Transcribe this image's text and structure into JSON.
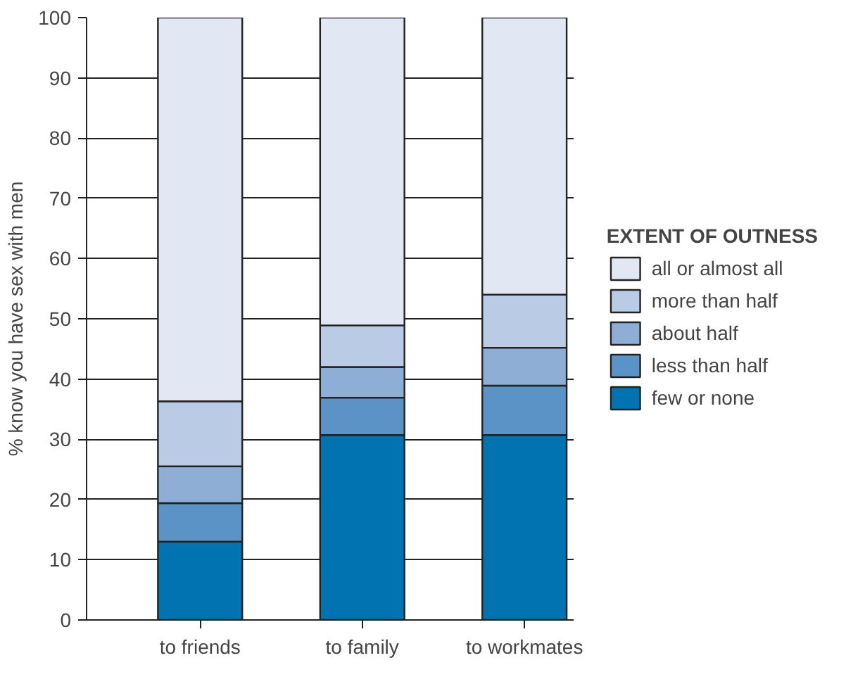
{
  "chart_data": {
    "type": "bar",
    "stacked": true,
    "ylabel": "% know you have sex with men",
    "legend_title": "EXTENT OF OUTNESS",
    "categories": [
      "to friends",
      "to family",
      "to workmates"
    ],
    "series": [
      {
        "name": "few or none",
        "color": "#0073b0",
        "values": [
          13,
          30.7,
          30.7
        ]
      },
      {
        "name": "less than half",
        "color": "#5b93c7",
        "values": [
          6.4,
          6.2,
          8.2
        ]
      },
      {
        "name": "about half",
        "color": "#8eaed6",
        "values": [
          6.1,
          5.1,
          6.3
        ]
      },
      {
        "name": "more than half",
        "color": "#bacbe5",
        "values": [
          10.8,
          6.9,
          8.8
        ]
      },
      {
        "name": "all or almost all",
        "color": "#e1e8f3",
        "values": [
          63.7,
          51.1,
          46.0
        ]
      }
    ],
    "ylim": [
      0,
      100
    ],
    "yticks": [
      0,
      10,
      20,
      30,
      40,
      50,
      60,
      70,
      80,
      90,
      100
    ],
    "grid": "y",
    "legend": "right"
  }
}
